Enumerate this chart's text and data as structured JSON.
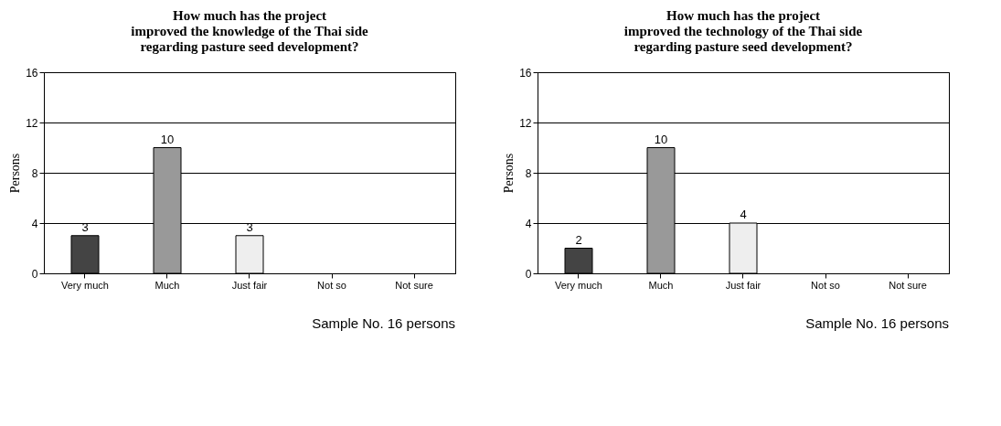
{
  "chart_data": [
    {
      "type": "bar",
      "title": "How much has the project\nimproved the knowledge of the Thai side\nregarding pasture seed development?",
      "ylabel": "Persons",
      "categories": [
        "Very much",
        "Much",
        "Just fair",
        "Not so",
        "Not sure"
      ],
      "values": [
        3,
        10,
        3,
        0,
        0
      ],
      "value_labels": [
        "3",
        "10",
        "3",
        null,
        null
      ],
      "colors": [
        "#444444",
        "#999999",
        "#eeeeee",
        "#ffffff",
        "#ffffff"
      ],
      "ylim": [
        0,
        16
      ],
      "yticks": [
        0,
        4,
        8,
        12,
        16
      ],
      "grid": "y",
      "annotations": [
        "Sample No. 16 persons"
      ]
    },
    {
      "type": "bar",
      "title": "How much has the project\nimproved the technology of the Thai side\nregarding pasture seed development?",
      "ylabel": "Persons",
      "categories": [
        "Very much",
        "Much",
        "Just fair",
        "Not so",
        "Not sure"
      ],
      "values": [
        2,
        10,
        4,
        0,
        0
      ],
      "value_labels": [
        "2",
        "10",
        "4",
        null,
        null
      ],
      "colors": [
        "#444444",
        "#999999",
        "#eeeeee",
        "#ffffff",
        "#ffffff"
      ],
      "ylim": [
        0,
        16
      ],
      "yticks": [
        0,
        4,
        8,
        12,
        16
      ],
      "grid": "y",
      "annotations": [
        "Sample No. 16 persons"
      ]
    }
  ]
}
